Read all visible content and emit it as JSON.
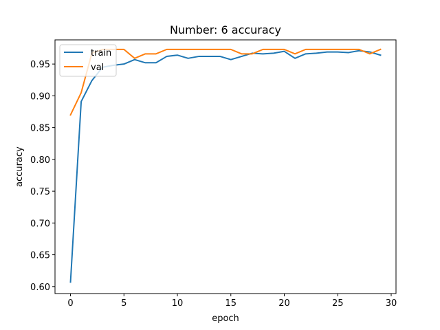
{
  "chart_data": {
    "type": "line",
    "title": "Number: 6 accuracy",
    "xlabel": "epoch",
    "ylabel": "accuracy",
    "xlim": [
      -1.45,
      30.45
    ],
    "ylim": [
      0.589,
      0.988
    ],
    "xticks": [
      0,
      5,
      10,
      15,
      20,
      25,
      30
    ],
    "yticks": [
      0.6,
      0.65,
      0.7,
      0.75,
      0.8,
      0.85,
      0.9,
      0.95
    ],
    "ytick_labels": [
      "0.60",
      "0.65",
      "0.70",
      "0.75",
      "0.80",
      "0.85",
      "0.90",
      "0.95"
    ],
    "grid": false,
    "legend_position": "top-left",
    "x": [
      0,
      1,
      2,
      3,
      4,
      5,
      6,
      7,
      8,
      9,
      10,
      11,
      12,
      13,
      14,
      15,
      16,
      17,
      18,
      19,
      20,
      21,
      22,
      23,
      24,
      25,
      26,
      27,
      28,
      29
    ],
    "series": [
      {
        "name": "train",
        "color": "#1f77b4",
        "values": [
          0.607,
          0.891,
          0.924,
          0.945,
          0.948,
          0.95,
          0.957,
          0.952,
          0.952,
          0.962,
          0.964,
          0.959,
          0.962,
          0.962,
          0.962,
          0.957,
          0.962,
          0.967,
          0.966,
          0.967,
          0.97,
          0.959,
          0.966,
          0.967,
          0.969,
          0.969,
          0.968,
          0.971,
          0.969,
          0.964
        ]
      },
      {
        "name": "val",
        "color": "#ff7f0e",
        "values": [
          0.87,
          0.905,
          0.967,
          0.973,
          0.973,
          0.973,
          0.959,
          0.966,
          0.966,
          0.973,
          0.973,
          0.973,
          0.973,
          0.973,
          0.973,
          0.973,
          0.966,
          0.966,
          0.973,
          0.973,
          0.973,
          0.966,
          0.973,
          0.973,
          0.973,
          0.973,
          0.973,
          0.973,
          0.966,
          0.973
        ]
      }
    ]
  }
}
